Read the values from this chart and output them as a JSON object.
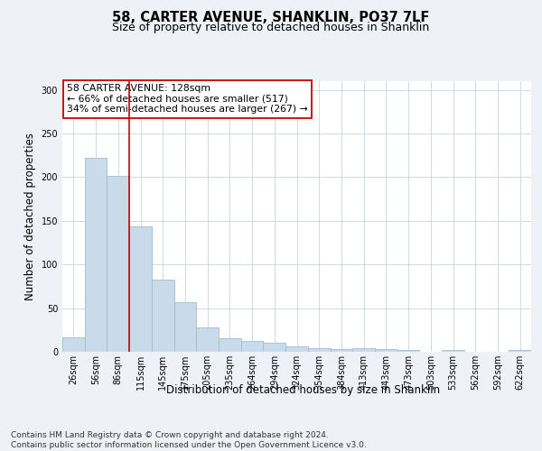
{
  "title": "58, CARTER AVENUE, SHANKLIN, PO37 7LF",
  "subtitle": "Size of property relative to detached houses in Shanklin",
  "xlabel": "Distribution of detached houses by size in Shanklin",
  "ylabel": "Number of detached properties",
  "bar_labels": [
    "26sqm",
    "56sqm",
    "86sqm",
    "115sqm",
    "145sqm",
    "175sqm",
    "205sqm",
    "235sqm",
    "264sqm",
    "294sqm",
    "324sqm",
    "354sqm",
    "384sqm",
    "413sqm",
    "443sqm",
    "473sqm",
    "503sqm",
    "533sqm",
    "562sqm",
    "592sqm",
    "622sqm"
  ],
  "bar_values": [
    17,
    222,
    202,
    144,
    83,
    57,
    28,
    15,
    12,
    10,
    6,
    4,
    3,
    4,
    3,
    2,
    0,
    2,
    0,
    0,
    2
  ],
  "bar_color": "#c9daea",
  "bar_edgecolor": "#a0bcd0",
  "ylim": [
    0,
    310
  ],
  "yticks": [
    0,
    50,
    100,
    150,
    200,
    250,
    300
  ],
  "vline_color": "#cc0000",
  "vline_x_index": 3,
  "annotation_line1": "58 CARTER AVENUE: 128sqm",
  "annotation_line2": "← 66% of detached houses are smaller (517)",
  "annotation_line3": "34% of semi-detached houses are larger (267) →",
  "annotation_box_color": "white",
  "annotation_box_edgecolor": "#cc0000",
  "footer": "Contains HM Land Registry data © Crown copyright and database right 2024.\nContains public sector information licensed under the Open Government Licence v3.0.",
  "bg_color": "#eef2f7",
  "plot_bg_color": "white",
  "grid_color": "#c8d4e0",
  "title_fontsize": 10.5,
  "subtitle_fontsize": 9,
  "tick_fontsize": 7,
  "ylabel_fontsize": 8.5,
  "xlabel_fontsize": 8.5,
  "annotation_fontsize": 7.8,
  "footer_fontsize": 6.5
}
